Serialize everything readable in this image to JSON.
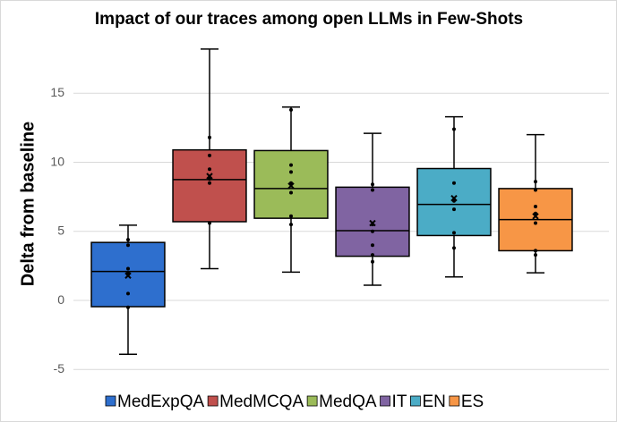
{
  "chart_data": {
    "type": "box",
    "title": "Impact of our traces among open LLMs in Few-Shots",
    "ylabel": "Delta from baseline",
    "ylim": [
      -5,
      19
    ],
    "yticks": [
      -5,
      0,
      5,
      10,
      15
    ],
    "grid": true,
    "legend": "bottom",
    "series": [
      {
        "name": "MedExpQA",
        "color": "#2e6fce",
        "min": -3.9,
        "q1": -0.45,
        "median": 2.1,
        "q3": 4.2,
        "max": 5.45,
        "mean": 1.8,
        "points": [
          4.4,
          4.0,
          2.3,
          2.0,
          0.5,
          -0.5
        ]
      },
      {
        "name": "MedMCQA",
        "color": "#c0504d",
        "min": 2.3,
        "q1": 5.7,
        "median": 8.75,
        "q3": 10.9,
        "max": 18.2,
        "mean": 9.0,
        "points": [
          11.8,
          10.5,
          9.5,
          8.8,
          8.5,
          5.6
        ]
      },
      {
        "name": "MedQA",
        "color": "#9bbb59",
        "min": 2.05,
        "q1": 5.95,
        "median": 8.1,
        "q3": 10.85,
        "max": 14.0,
        "mean": 8.3,
        "points": [
          13.8,
          9.8,
          9.3,
          8.5,
          7.8,
          6.1,
          5.5
        ]
      },
      {
        "name": "IT",
        "color": "#8064a2",
        "min": 1.1,
        "q1": 3.2,
        "median": 5.05,
        "q3": 8.2,
        "max": 12.1,
        "mean": 5.6,
        "points": [
          8.4,
          8.0,
          5.5,
          5.0,
          4.0,
          3.3,
          2.8
        ]
      },
      {
        "name": "EN",
        "color": "#4bacc6",
        "min": 1.7,
        "q1": 4.7,
        "median": 6.95,
        "q3": 9.55,
        "max": 13.3,
        "mean": 7.4,
        "points": [
          12.4,
          8.5,
          7.2,
          6.6,
          4.9,
          3.8
        ]
      },
      {
        "name": "ES",
        "color": "#f79646",
        "min": 2.0,
        "q1": 3.6,
        "median": 5.85,
        "q3": 8.1,
        "max": 12.0,
        "mean": 6.1,
        "points": [
          8.6,
          8.0,
          6.8,
          6.3,
          5.6,
          3.6,
          3.3
        ]
      }
    ]
  }
}
